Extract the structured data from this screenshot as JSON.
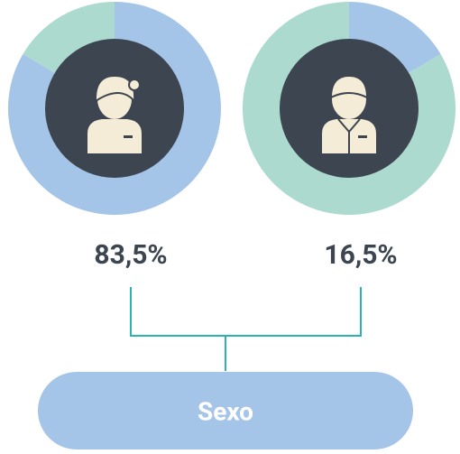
{
  "chart_data": [
    {
      "type": "pie",
      "values": [
        83.5,
        16.5
      ],
      "value_labels": [
        "83,5%",
        null
      ],
      "colors": [
        "#a4c5e8",
        "#acdace"
      ]
    },
    {
      "type": "pie",
      "values": [
        16.5,
        83.5
      ],
      "value_labels": [
        "16,5%",
        null
      ],
      "colors": [
        "#a4c5e8",
        "#acdace"
      ]
    }
  ],
  "label": "Sexo"
}
